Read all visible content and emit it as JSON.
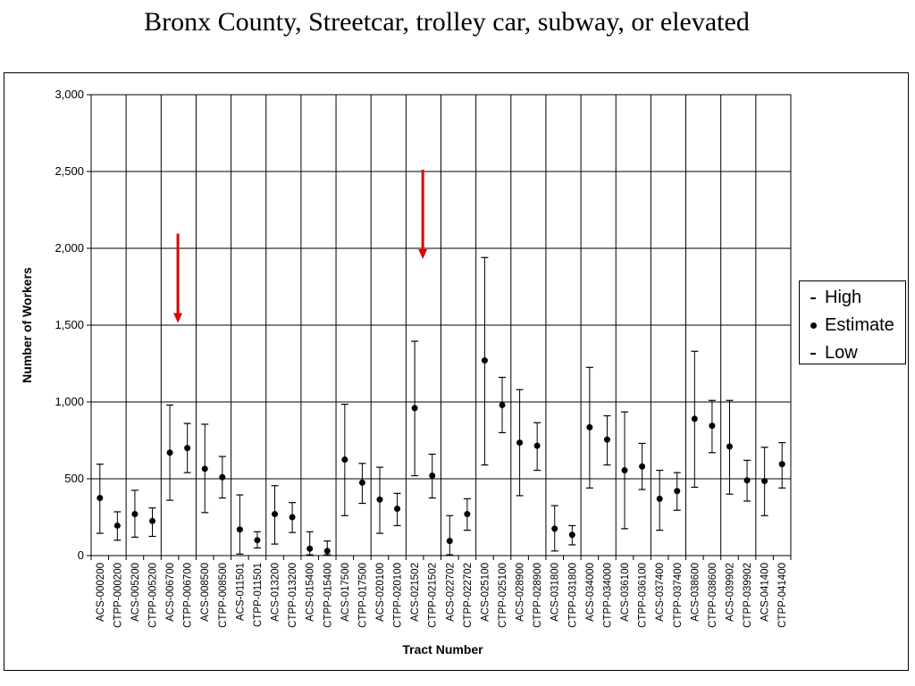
{
  "chart_data": {
    "type": "error-bar",
    "title": "Bronx County, Streetcar, trolley car, subway, or elevated",
    "xlabel": "Tract Number",
    "ylabel": "Number of Workers",
    "ylim": [
      0,
      3000
    ],
    "yticks": [
      0,
      500,
      1000,
      1500,
      2000,
      2500,
      3000
    ],
    "ytick_labels": [
      "0",
      "500",
      "1,000",
      "1,500",
      "2,000",
      "2,500",
      "3,000"
    ],
    "grid": "horizontal and vertical (between tract pairs)",
    "legend": {
      "position": "right",
      "entries": [
        "High",
        "Estimate",
        "Low"
      ]
    },
    "categories": [
      "ACS-000200",
      "CTPP-000200",
      "ACS-005200",
      "CTPP-005200",
      "ACS-006700",
      "CTPP-006700",
      "ACS-008500",
      "CTPP-008500",
      "ACS-011501",
      "CTPP-011501",
      "ACS-013200",
      "CTPP-013200",
      "ACS-015400",
      "CTPP-015400",
      "ACS-017500",
      "CTPP-017500",
      "ACS-020100",
      "CTPP-020100",
      "ACS-021502",
      "CTPP-021502",
      "ACS-022702",
      "CTPP-022702",
      "ACS-025100",
      "CTPP-025100",
      "ACS-028900",
      "CTPP-028900",
      "ACS-031800",
      "CTPP-031800",
      "ACS-034000",
      "CTPP-034000",
      "ACS-036100",
      "CTPP-036100",
      "ACS-037400",
      "CTPP-037400",
      "ACS-038600",
      "CTPP-038600",
      "ACS-039902",
      "CTPP-039902",
      "ACS-041400",
      "CTPP-041400"
    ],
    "series": [
      {
        "name": "High",
        "values": [
          595,
          285,
          425,
          310,
          980,
          860,
          855,
          645,
          395,
          155,
          455,
          345,
          155,
          95,
          985,
          600,
          575,
          405,
          1395,
          660,
          260,
          370,
          1940,
          1160,
          1080,
          865,
          325,
          195,
          1225,
          910,
          935,
          730,
          555,
          540,
          1330,
          1010,
          1010,
          620,
          705,
          735
        ]
      },
      {
        "name": "Estimate",
        "values": [
          375,
          195,
          270,
          225,
          670,
          700,
          565,
          510,
          170,
          100,
          270,
          250,
          45,
          30,
          625,
          475,
          365,
          305,
          960,
          520,
          95,
          270,
          1270,
          980,
          735,
          715,
          175,
          135,
          835,
          755,
          555,
          580,
          370,
          420,
          890,
          845,
          710,
          490,
          485,
          595
        ]
      },
      {
        "name": "Low",
        "values": [
          145,
          100,
          120,
          125,
          360,
          540,
          280,
          375,
          10,
          50,
          75,
          150,
          5,
          5,
          260,
          340,
          145,
          195,
          520,
          375,
          5,
          165,
          590,
          800,
          390,
          555,
          30,
          70,
          440,
          590,
          175,
          430,
          165,
          295,
          445,
          670,
          400,
          355,
          260,
          440
        ]
      }
    ],
    "annotations": [
      {
        "type": "arrow",
        "color": "#e00000",
        "target": "ACS-006700"
      },
      {
        "type": "arrow",
        "color": "#e00000",
        "target": "ACS-021502"
      }
    ]
  },
  "colors": {
    "axis": "#000000",
    "marker": "#000000",
    "arrow": "#e00000"
  }
}
